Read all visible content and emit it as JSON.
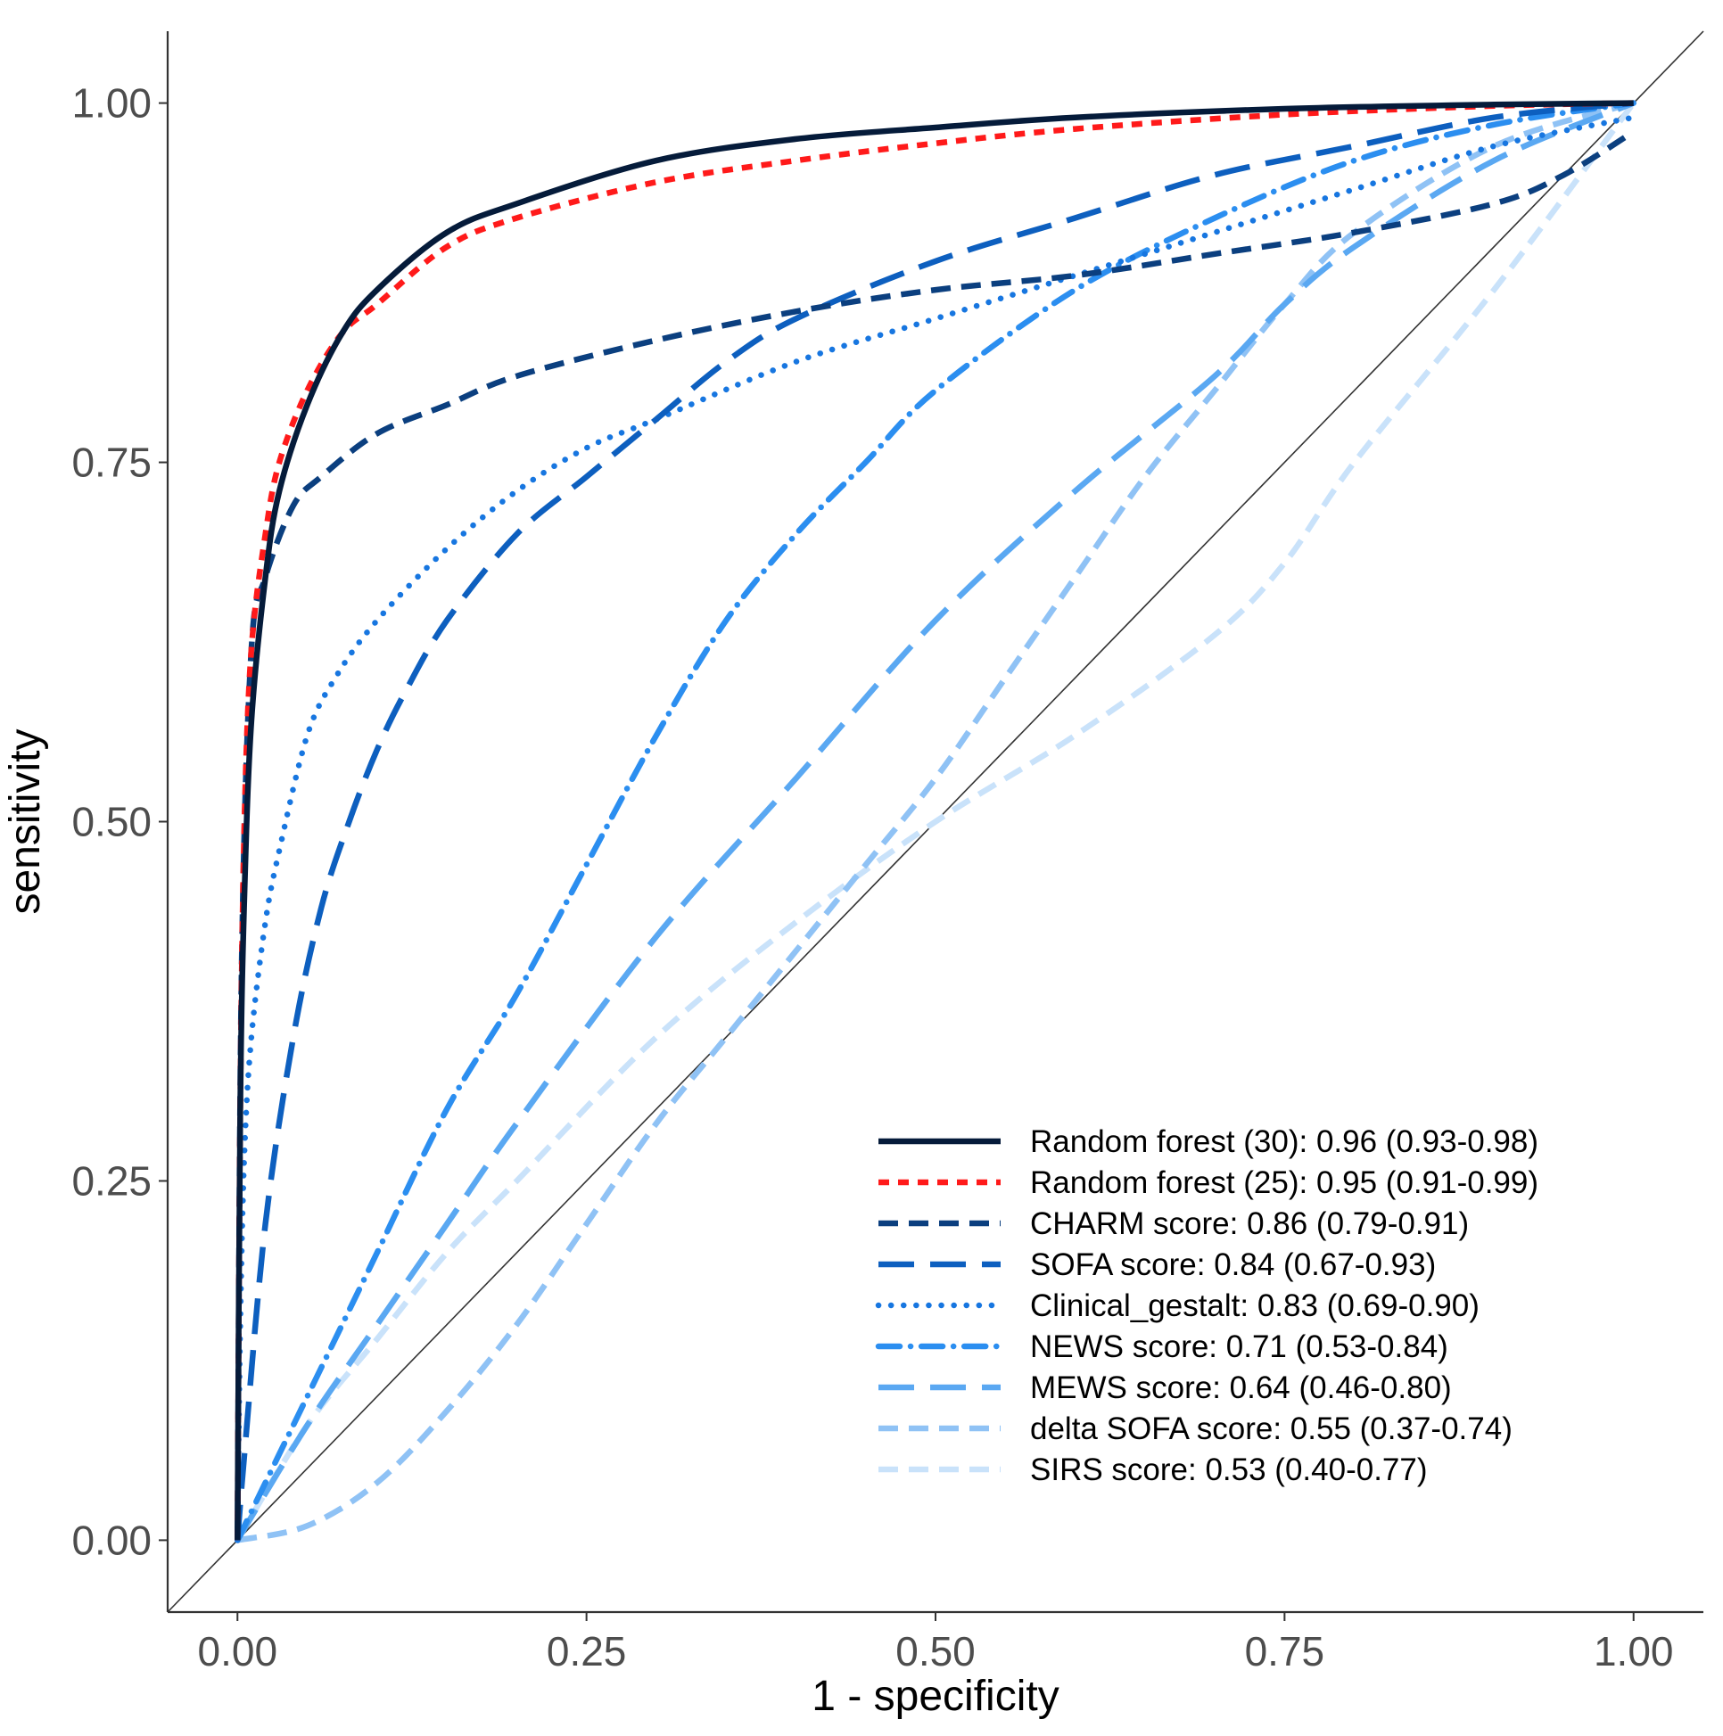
{
  "chart_data": {
    "type": "line",
    "xlabel": "1 - specificity",
    "ylabel": "sensitivity",
    "xlim": [
      -0.05,
      1.05
    ],
    "ylim": [
      -0.05,
      1.05
    ],
    "x_ticks": [
      0,
      0.25,
      0.5,
      0.75,
      1
    ],
    "x_tick_labels": [
      "0.00",
      "0.25",
      "0.50",
      "0.75",
      "1.00"
    ],
    "y_ticks": [
      0,
      0.25,
      0.5,
      0.75,
      1
    ],
    "y_tick_labels": [
      "0.00",
      "0.25",
      "0.50",
      "0.75",
      "1.00"
    ],
    "grid": false,
    "legend_position": "bottom-right",
    "reference_line": {
      "x": [
        -0.05,
        1.05
      ],
      "y": [
        -0.05,
        1.05
      ],
      "color": "#333333"
    },
    "series": [
      {
        "name": "Random forest (30): 0.96 (0.93-0.98)",
        "color": "#051b3a",
        "dash": "solid",
        "x": [
          0,
          0.002,
          0.005,
          0.01,
          0.02,
          0.03,
          0.05,
          0.075,
          0.1,
          0.15,
          0.2,
          0.3,
          0.4,
          0.5,
          0.6,
          0.75,
          0.9,
          1
        ],
        "y": [
          0,
          0.3,
          0.45,
          0.57,
          0.67,
          0.73,
          0.79,
          0.84,
          0.87,
          0.91,
          0.93,
          0.96,
          0.975,
          0.983,
          0.99,
          0.996,
          0.999,
          1
        ]
      },
      {
        "name": "Random forest (25): 0.95 (0.91-0.99)",
        "color": "#ff1a1a",
        "dash": "dashed-short",
        "x": [
          0,
          0.002,
          0.005,
          0.01,
          0.02,
          0.03,
          0.05,
          0.075,
          0.1,
          0.15,
          0.2,
          0.3,
          0.4,
          0.5,
          0.6,
          0.75,
          0.9,
          1
        ],
        "y": [
          0,
          0.3,
          0.5,
          0.62,
          0.7,
          0.75,
          0.8,
          0.84,
          0.86,
          0.9,
          0.92,
          0.945,
          0.96,
          0.972,
          0.982,
          0.992,
          0.998,
          1
        ]
      },
      {
        "name": "CHARM score: 0.86 (0.79-0.91)",
        "color": "#0b3f7f",
        "dash": "dashed",
        "x": [
          0,
          0.003,
          0.01,
          0.02,
          0.04,
          0.06,
          0.1,
          0.15,
          0.2,
          0.3,
          0.4,
          0.5,
          0.6,
          0.7,
          0.8,
          0.9,
          0.95,
          1
        ],
        "y": [
          0,
          0.4,
          0.62,
          0.67,
          0.72,
          0.74,
          0.77,
          0.79,
          0.81,
          0.835,
          0.855,
          0.87,
          0.88,
          0.895,
          0.91,
          0.93,
          0.95,
          0.98
        ]
      },
      {
        "name": "SOFA score: 0.84 (0.67-0.93)",
        "color": "#0d5fbf",
        "dash": "dashed-long",
        "x": [
          0,
          0.005,
          0.02,
          0.04,
          0.06,
          0.08,
          0.1,
          0.12,
          0.15,
          0.2,
          0.25,
          0.3,
          0.35,
          0.4,
          0.5,
          0.6,
          0.7,
          0.8,
          0.9,
          1
        ],
        "y": [
          0,
          0.06,
          0.22,
          0.35,
          0.44,
          0.5,
          0.55,
          0.59,
          0.64,
          0.7,
          0.74,
          0.78,
          0.82,
          0.85,
          0.89,
          0.92,
          0.95,
          0.97,
          0.99,
          1
        ]
      },
      {
        "name": "Clinical_gestalt: 0.83 (0.69-0.90)",
        "color": "#1776e0",
        "dash": "dotted",
        "x": [
          0,
          0.002,
          0.005,
          0.01,
          0.02,
          0.03,
          0.05,
          0.07,
          0.1,
          0.15,
          0.2,
          0.25,
          0.3,
          0.4,
          0.5,
          0.6,
          0.7,
          0.8,
          0.9,
          1
        ],
        "y": [
          0,
          0.15,
          0.27,
          0.35,
          0.43,
          0.48,
          0.56,
          0.6,
          0.64,
          0.69,
          0.73,
          0.76,
          0.78,
          0.82,
          0.85,
          0.88,
          0.91,
          0.94,
          0.97,
          0.99
        ]
      },
      {
        "name": "NEWS score: 0.71 (0.53-0.84)",
        "color": "#2b8ef0",
        "dash": "dash-dot",
        "x": [
          0,
          0.03,
          0.06,
          0.1,
          0.15,
          0.2,
          0.25,
          0.3,
          0.35,
          0.4,
          0.45,
          0.5,
          0.6,
          0.7,
          0.8,
          0.9,
          1
        ],
        "y": [
          0,
          0.06,
          0.12,
          0.2,
          0.3,
          0.38,
          0.47,
          0.56,
          0.64,
          0.7,
          0.75,
          0.8,
          0.87,
          0.92,
          0.96,
          0.985,
          1
        ]
      },
      {
        "name": "MEWS score: 0.64 (0.46-0.80)",
        "color": "#5aa8f2",
        "dash": "dashed-long",
        "x": [
          0,
          0.05,
          0.1,
          0.15,
          0.2,
          0.3,
          0.4,
          0.5,
          0.6,
          0.7,
          0.75,
          0.8,
          0.9,
          1
        ],
        "y": [
          0,
          0.08,
          0.15,
          0.22,
          0.29,
          0.42,
          0.53,
          0.64,
          0.73,
          0.81,
          0.86,
          0.9,
          0.96,
          1
        ]
      },
      {
        "name": "delta SOFA score: 0.55 (0.37-0.74)",
        "color": "#8fc2f5",
        "dash": "dashed",
        "x": [
          0,
          0.05,
          0.1,
          0.15,
          0.2,
          0.25,
          0.3,
          0.35,
          0.4,
          0.45,
          0.5,
          0.55,
          0.6,
          0.65,
          0.7,
          0.75,
          0.8,
          0.9,
          1
        ],
        "y": [
          0,
          0.01,
          0.04,
          0.09,
          0.15,
          0.22,
          0.29,
          0.35,
          0.41,
          0.47,
          0.53,
          0.6,
          0.67,
          0.74,
          0.8,
          0.86,
          0.91,
          0.97,
          1
        ]
      },
      {
        "name": "SIRS score: 0.53 (0.40-0.77)",
        "color": "#c9e2fa",
        "dash": "dashed",
        "x": [
          0,
          0.05,
          0.1,
          0.15,
          0.2,
          0.3,
          0.4,
          0.5,
          0.6,
          0.7,
          0.75,
          0.8,
          0.9,
          1
        ],
        "y": [
          0,
          0.08,
          0.14,
          0.2,
          0.25,
          0.35,
          0.43,
          0.5,
          0.56,
          0.63,
          0.68,
          0.75,
          0.87,
          1
        ]
      }
    ]
  }
}
